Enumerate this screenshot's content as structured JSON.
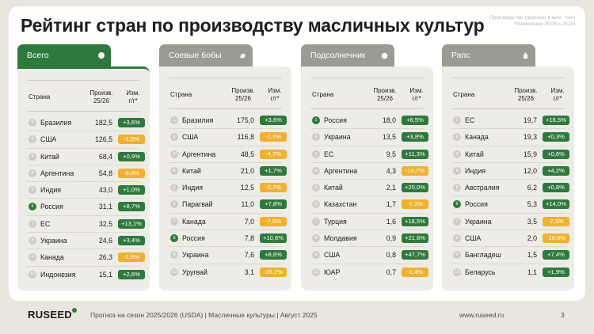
{
  "title": "Рейтинг стран по производству масличных культур",
  "note": [
    "Производство (прогноз) в млн. тонн",
    "*Изменение 25/26 к 24/25"
  ],
  "columns": {
    "country": "Страна",
    "prod": [
      "Произв.",
      "25/26"
    ],
    "chg": [
      "Изм.",
      "г/г*"
    ]
  },
  "colors": {
    "accent": "#2e7a3d",
    "positive": "#2e7a3d",
    "negative": "#f0b12e",
    "tab_inactive": "#9b9a93"
  },
  "cards": [
    {
      "tab": "Всего",
      "icon": "circle-icon",
      "active": true,
      "rows": [
        {
          "n": "1",
          "country": "Бразилия",
          "prod": "182,5",
          "chg": "+3,6%",
          "trend": "pos",
          "hl": false
        },
        {
          "n": "2",
          "country": "США",
          "prod": "126,5",
          "chg": "-1,5%",
          "trend": "neg",
          "hl": false
        },
        {
          "n": "3",
          "country": "Китай",
          "prod": "68,4",
          "chg": "+0,9%",
          "trend": "pos",
          "hl": false
        },
        {
          "n": "4",
          "country": "Аргентина",
          "prod": "54,8",
          "chg": "-6,0%",
          "trend": "neg",
          "hl": false
        },
        {
          "n": "5",
          "country": "Индия",
          "prod": "43,0",
          "chg": "+1,0%",
          "trend": "pos",
          "hl": false
        },
        {
          "n": "6",
          "country": "Россия",
          "prod": "31,1",
          "chg": "+8,7%",
          "trend": "pos",
          "hl": true
        },
        {
          "n": "7",
          "country": "ЕС",
          "prod": "32,5",
          "chg": "+13,1%",
          "trend": "pos",
          "hl": false
        },
        {
          "n": "8",
          "country": "Украина",
          "prod": "24,6",
          "chg": "+3,4%",
          "trend": "pos",
          "hl": false
        },
        {
          "n": "9",
          "country": "Канада",
          "prod": "26,3",
          "chg": "-1,8%",
          "trend": "neg",
          "hl": false
        },
        {
          "n": "10",
          "country": "Индонезия",
          "prod": "15,1",
          "chg": "+2,6%",
          "trend": "pos",
          "hl": false
        }
      ]
    },
    {
      "tab": "Соевые бобы",
      "icon": "soybean-icon",
      "active": false,
      "rows": [
        {
          "n": "1",
          "country": "Бразилия",
          "prod": "175,0",
          "chg": "+3,6%",
          "trend": "pos",
          "hl": false
        },
        {
          "n": "2",
          "country": "США",
          "prod": "116,8",
          "chg": "-1,7%",
          "trend": "neg",
          "hl": false
        },
        {
          "n": "3",
          "country": "Аргентина",
          "prod": "48,5",
          "chg": "-4,7%",
          "trend": "neg",
          "hl": false
        },
        {
          "n": "4",
          "country": "Китай",
          "prod": "21,0",
          "chg": "+1,7%",
          "trend": "pos",
          "hl": false
        },
        {
          "n": "5",
          "country": "Индия",
          "prod": "12,5",
          "chg": "-0,7%",
          "trend": "neg",
          "hl": false
        },
        {
          "n": "6",
          "country": "Парагвай",
          "prod": "11,0",
          "chg": "+7,8%",
          "trend": "pos",
          "hl": false
        },
        {
          "n": "7",
          "country": "Канада",
          "prod": "7,0",
          "chg": "-7,5%",
          "trend": "neg",
          "hl": false
        },
        {
          "n": "8",
          "country": "Россия",
          "prod": "7,8",
          "chg": "+10,6%",
          "trend": "pos",
          "hl": true
        },
        {
          "n": "9",
          "country": "Украина",
          "prod": "7,6",
          "chg": "+8,6%",
          "trend": "pos",
          "hl": false
        },
        {
          "n": "10",
          "country": "Уругвай",
          "prod": "3,1",
          "chg": "-26,2%",
          "trend": "neg",
          "hl": false
        }
      ]
    },
    {
      "tab": "Подсолнечник",
      "icon": "sunflower-icon",
      "active": false,
      "rows": [
        {
          "n": "1",
          "country": "Россия",
          "prod": "18,0",
          "chg": "+6,5%",
          "trend": "pos",
          "hl": true
        },
        {
          "n": "2",
          "country": "Украина",
          "prod": "13,5",
          "chg": "+3,8%",
          "trend": "pos",
          "hl": false
        },
        {
          "n": "3",
          "country": "ЕС",
          "prod": "9,5",
          "chg": "+11,3%",
          "trend": "pos",
          "hl": false
        },
        {
          "n": "4",
          "country": "Аргентина",
          "prod": "4,3",
          "chg": "-15,7%",
          "trend": "neg",
          "hl": false
        },
        {
          "n": "5",
          "country": "Китай",
          "prod": "2,1",
          "chg": "+20,0%",
          "trend": "pos",
          "hl": false
        },
        {
          "n": "6",
          "country": "Казахстан",
          "prod": "1,7",
          "chg": "-7,3%",
          "trend": "neg",
          "hl": false
        },
        {
          "n": "7",
          "country": "Турция",
          "prod": "1,6",
          "chg": "+18,5%",
          "trend": "pos",
          "hl": false
        },
        {
          "n": "8",
          "country": "Молдавия",
          "prod": "0,9",
          "chg": "+21,6%",
          "trend": "pos",
          "hl": false
        },
        {
          "n": "9",
          "country": "США",
          "prod": "0,8",
          "chg": "+47,7%",
          "trend": "pos",
          "hl": false
        },
        {
          "n": "10",
          "country": "ЮАР",
          "prod": "0,7",
          "chg": "-1,4%",
          "trend": "neg",
          "hl": false
        }
      ]
    },
    {
      "tab": "Рапс",
      "icon": "rapeseed-icon",
      "active": false,
      "rows": [
        {
          "n": "1",
          "country": "ЕС",
          "prod": "19,7",
          "chg": "+16,5%",
          "trend": "pos",
          "hl": false
        },
        {
          "n": "2",
          "country": "Канада",
          "prod": "19,3",
          "chg": "+0,3%",
          "trend": "pos",
          "hl": false
        },
        {
          "n": "3",
          "country": "Китай",
          "prod": "15,9",
          "chg": "+0,6%",
          "trend": "pos",
          "hl": false
        },
        {
          "n": "4",
          "country": "Индия",
          "prod": "12,0",
          "chg": "+4,2%",
          "trend": "pos",
          "hl": false
        },
        {
          "n": "5",
          "country": "Австралия",
          "prod": "6,2",
          "chg": "+0,8%",
          "trend": "pos",
          "hl": false
        },
        {
          "n": "6",
          "country": "Россия",
          "prod": "5,3",
          "chg": "+14,0%",
          "trend": "pos",
          "hl": true
        },
        {
          "n": "7",
          "country": "Украина",
          "prod": "3,5",
          "chg": "-7,9%",
          "trend": "neg",
          "hl": false
        },
        {
          "n": "8",
          "country": "США",
          "prod": "2,0",
          "chg": "-10,6%",
          "trend": "neg",
          "hl": false
        },
        {
          "n": "9",
          "country": "Бангладеш",
          "prod": "1,5",
          "chg": "+7,4%",
          "trend": "pos",
          "hl": false
        },
        {
          "n": "10",
          "country": "Беларусь",
          "prod": "1,1",
          "chg": "+1,9%",
          "trend": "pos",
          "hl": false
        }
      ]
    }
  ],
  "footer": {
    "logo": "RUSEED",
    "text": "Прогноз на сезон 2025/2026 (USDA)  |  Масличные культуры  |  Август 2025",
    "url": "www.ruseed.ru",
    "page": "3"
  }
}
